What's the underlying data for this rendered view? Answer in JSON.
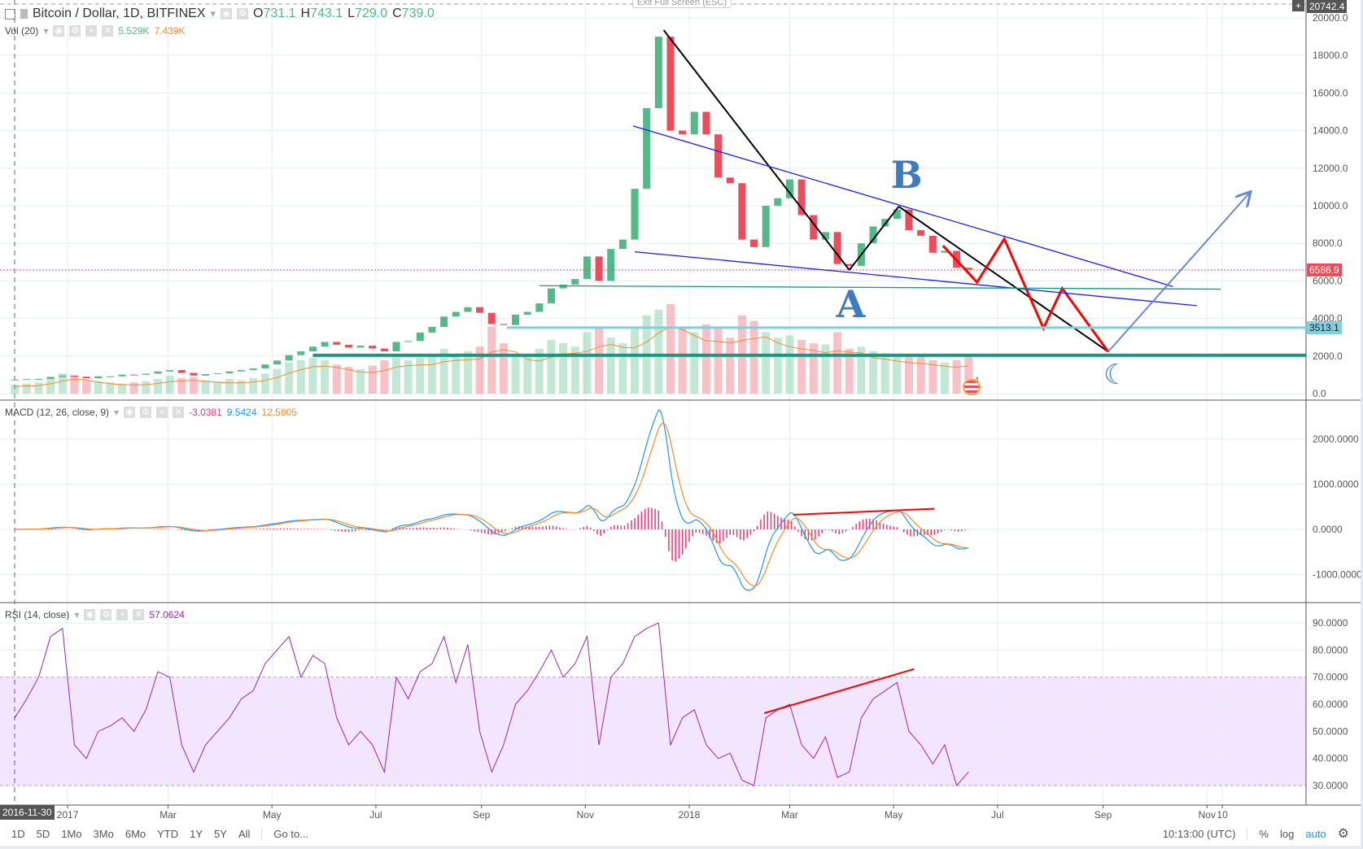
{
  "header": {
    "symbol": "Bitcoin / Dollar, 1D, BITFINEX",
    "o_label": "O",
    "o": "731.1",
    "h_label": "H",
    "h": "743.1",
    "l_label": "L",
    "l": "729.0",
    "c_label": "C",
    "c": "739.0",
    "exit_fullscreen": "Exit Full Screen (ESC)"
  },
  "volume_legend": {
    "label": "Vol (20)",
    "v1": "5.529K",
    "v2": "7.439K"
  },
  "macd_legend": {
    "label": "MACD (12, 26, close, 9)",
    "hist": "-3.0381",
    "macd": "9.5424",
    "signal": "12.5805"
  },
  "rsi_legend": {
    "label": "RSI (14, close)",
    "value": "57.0624"
  },
  "price_axis": {
    "ticks": [
      "20000.0",
      "18000.0",
      "16000.0",
      "14000.0",
      "12000.0",
      "10000.0",
      "8000.0",
      "6000.0",
      "4000.0",
      "2000.0",
      "0.0"
    ],
    "top_label": "20742.4",
    "last_price": "6586.9",
    "level_label": "3513.1"
  },
  "macd_axis": {
    "ticks": [
      "2000.0000",
      "1000.0000",
      "0.0000",
      "-1000.0000"
    ]
  },
  "rsi_axis": {
    "ticks": [
      "90.0000",
      "80.0000",
      "70.0000",
      "60.0000",
      "50.0000",
      "40.0000",
      "30.0000"
    ]
  },
  "time_axis": {
    "cursor_date": "2016-11-30",
    "labels": [
      {
        "t": "2017",
        "d": "2017-01-01"
      },
      {
        "t": "Mar",
        "d": "2017-03-01"
      },
      {
        "t": "May",
        "d": "2017-05-01"
      },
      {
        "t": "Jul",
        "d": "2017-07-01"
      },
      {
        "t": "Sep",
        "d": "2017-09-01"
      },
      {
        "t": "Nov",
        "d": "2017-11-01"
      },
      {
        "t": "2018",
        "d": "2018-01-01"
      },
      {
        "t": "Mar",
        "d": "2018-03-01"
      },
      {
        "t": "May",
        "d": "2018-05-01"
      },
      {
        "t": "Jul",
        "d": "2018-07-01"
      },
      {
        "t": "Sep",
        "d": "2018-09-01"
      },
      {
        "t": "Nov",
        "d": "2018-11-01"
      },
      {
        "t": "10",
        "d": "2018-11-10"
      }
    ]
  },
  "toolbar": {
    "ranges": [
      "1D",
      "5D",
      "1Mo",
      "3Mo",
      "6Mo",
      "YTD",
      "1Y",
      "5Y",
      "All"
    ],
    "goto": "Go to...",
    "time": "10:13:00 (UTC)",
    "percent": "%",
    "log": "log",
    "auto": "auto"
  },
  "annotations": {
    "a": "A",
    "b": "B",
    "event_count": "4"
  },
  "colors": {
    "up": "#53b987",
    "down": "#eb4d5c",
    "macd": "#2196f3",
    "signal": "#f68b2f",
    "hist": "#f0356f",
    "rsi": "#9c27b0",
    "rsi_band": "#f3e5fd",
    "accent": "#2196f3"
  },
  "chart_data": {
    "type": "candlestick",
    "interval_note": "weekly approximation of daily chart",
    "start_week": "2016-11-28",
    "ylim": [
      0,
      20742.4
    ],
    "closes": [
      750,
      770,
      780,
      890,
      960,
      900,
      820,
      920,
      920,
      1010,
      1000,
      1060,
      1180,
      1250,
      1100,
      960,
      1040,
      1080,
      1180,
      1250,
      1340,
      1550,
      1760,
      2050,
      2250,
      2500,
      2750,
      2600,
      2450,
      2550,
      2400,
      2250,
      2750,
      2800,
      3250,
      3550,
      4100,
      4350,
      4600,
      4300,
      3700,
      3650,
      4200,
      4350,
      4800,
      5600,
      5800,
      6100,
      7300,
      6000,
      7700,
      8200,
      10900,
      15200,
      19000,
      14000,
      13800,
      15000,
      13800,
      11500,
      11200,
      8200,
      7800,
      10000,
      10400,
      11400,
      9500,
      8200,
      8600,
      6900,
      6800,
      8000,
      8900,
      9300,
      9800,
      8700,
      8400,
      7500,
      7600,
      6700,
      6587
    ],
    "volume_k": [
      8,
      9,
      10,
      14,
      18,
      16,
      12,
      11,
      10,
      9,
      10,
      11,
      13,
      16,
      14,
      15,
      12,
      11,
      13,
      12,
      14,
      18,
      22,
      28,
      30,
      32,
      30,
      26,
      24,
      22,
      25,
      30,
      34,
      30,
      32,
      35,
      40,
      36,
      38,
      42,
      60,
      45,
      35,
      34,
      40,
      48,
      45,
      42,
      55,
      60,
      50,
      45,
      58,
      70,
      75,
      80,
      60,
      55,
      62,
      58,
      50,
      70,
      65,
      55,
      50,
      52,
      48,
      45,
      44,
      55,
      40,
      42,
      38,
      36,
      35,
      33,
      34,
      30,
      28,
      30,
      35
    ],
    "rsi": [
      55,
      62,
      70,
      85,
      88,
      45,
      40,
      50,
      52,
      55,
      50,
      58,
      72,
      70,
      45,
      35,
      45,
      50,
      55,
      62,
      65,
      75,
      80,
      85,
      70,
      78,
      75,
      55,
      45,
      50,
      45,
      35,
      70,
      62,
      72,
      75,
      85,
      68,
      82,
      50,
      35,
      45,
      60,
      65,
      72,
      80,
      70,
      75,
      85,
      45,
      70,
      75,
      85,
      88,
      90,
      45,
      55,
      58,
      45,
      40,
      42,
      32,
      30,
      55,
      58,
      60,
      45,
      40,
      48,
      33,
      35,
      55,
      62,
      65,
      68,
      50,
      45,
      38,
      45,
      30,
      35
    ],
    "rsi_levels": [
      70,
      30
    ],
    "drawings": [
      {
        "kind": "trend",
        "color": "#000000",
        "pts": [
          [
            "2017-12-17",
            19350
          ],
          [
            "2018-04-05",
            6580
          ]
        ]
      },
      {
        "kind": "trend",
        "color": "#000000",
        "pts": [
          [
            "2018-04-05",
            6580
          ],
          [
            "2018-05-04",
            9960
          ]
        ]
      },
      {
        "kind": "trend",
        "color": "#000000",
        "pts": [
          [
            "2018-05-04",
            9960
          ],
          [
            "2018-09-04",
            2230
          ]
        ]
      },
      {
        "kind": "zigzag",
        "color": "#ff0000",
        "pts": [
          [
            "2018-05-30",
            7870
          ],
          [
            "2018-06-19",
            5930
          ],
          [
            "2018-07-05",
            8240
          ],
          [
            "2018-07-28",
            3480
          ],
          [
            "2018-08-08",
            5600
          ],
          [
            "2018-09-04",
            2230
          ]
        ]
      },
      {
        "kind": "trend",
        "color": "#1a1aff",
        "pts": [
          [
            "2017-11-29",
            14250
          ],
          [
            "2018-10-12",
            5700
          ]
        ]
      },
      {
        "kind": "trend",
        "color": "#1a1aff",
        "pts": [
          [
            "2017-11-30",
            7550
          ],
          [
            "2018-10-26",
            4680
          ]
        ]
      },
      {
        "kind": "trend",
        "color": "#159980",
        "pts": [
          [
            "2017-10-05",
            5740
          ],
          [
            "2018-11-09",
            5560
          ]
        ]
      },
      {
        "kind": "hline",
        "color": "#80cfdc",
        "from": "2017-09-16",
        "price": 3513.1
      },
      {
        "kind": "hline",
        "color": "#159980",
        "from": "2017-05-25",
        "price": 2040
      },
      {
        "kind": "arrow",
        "color": "#6a89cc",
        "pts": [
          [
            "2018-09-04",
            2230
          ],
          [
            "2018-11-26",
            10690
          ]
        ]
      }
    ],
    "macd_drawing": {
      "color": "#ff0000",
      "pts": [
        [
          "2018-03-03",
          324
        ],
        [
          "2018-05-25",
          457
        ]
      ]
    },
    "rsi_drawing": {
      "color": "#ff0000",
      "pts": [
        [
          "2018-02-14",
          56.7
        ],
        [
          "2018-05-13",
          73
        ]
      ]
    },
    "label_points": {
      "A": [
        "2018-04-05",
        4700
      ],
      "B": [
        "2018-05-07",
        11600
      ]
    }
  }
}
